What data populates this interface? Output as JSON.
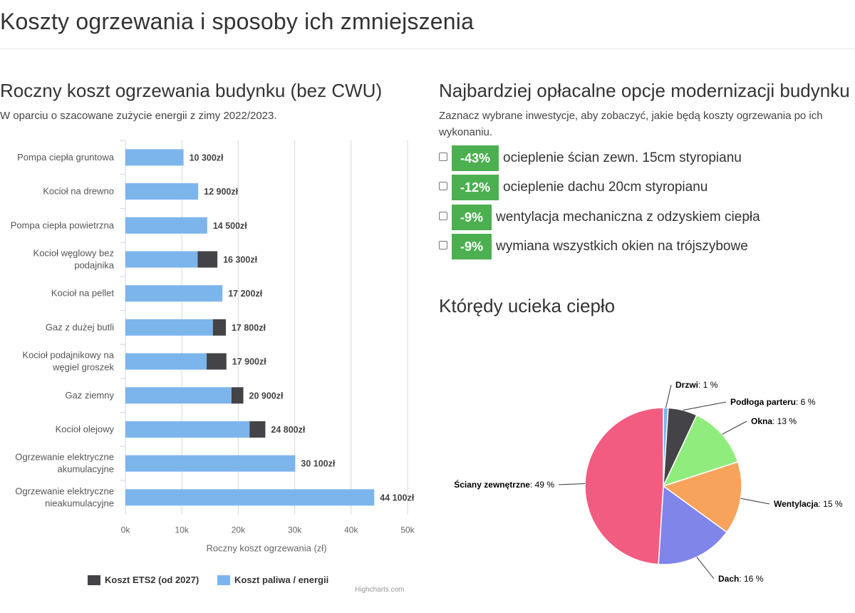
{
  "page": {
    "title": "Koszty ogrzewania i sposoby ich zmniejszenia"
  },
  "left": {
    "title": "Roczny koszt ogrzewania budynku (bez CWU)",
    "subtitle": "W oparciu o szacowane zużycie energii z zimy 2022/2023."
  },
  "right": {
    "title": "Najbardziej opłacalne opcje modernizacji budynku",
    "subtitle_line1": "Zaznacz wybrane inwestycje, aby zobaczyć, jakie będą koszty ogrzewania po ich",
    "subtitle_line2": "wykonaniu.",
    "options": [
      {
        "badge": "-43%",
        "label": "ocieplenie ścian zewn. 15cm styropianu"
      },
      {
        "badge": "-12%",
        "label": "ocieplenie dachu 20cm styropianu"
      },
      {
        "badge": "-9%",
        "label": "wentylacja mechaniczna z odzyskiem ciepła"
      },
      {
        "badge": "-9%",
        "label": "wymiana wszystkich okien na trójszybowe"
      }
    ],
    "pie_title": "Którędy ucieka ciepło"
  },
  "colors": {
    "fuel": "#7cb5ec",
    "ets": "#434348",
    "badge": "#4caf50"
  },
  "chart_data": [
    {
      "type": "bar",
      "orientation": "horizontal",
      "stacked": true,
      "categories": [
        [
          "Pompa ciepła gruntowa"
        ],
        [
          "Kocioł na drewno"
        ],
        [
          "Pompa ciepła powietrzna"
        ],
        [
          "Kocioł węglowy bez",
          "podajnika"
        ],
        [
          "Kocioł na pellet"
        ],
        [
          "Gaz z dużej butli"
        ],
        [
          "Kocioł podajnikowy na",
          "węgiel groszek"
        ],
        [
          "Gaz ziemny"
        ],
        [
          "Kocioł olejowy"
        ],
        [
          "Ogrzewanie elektryczne",
          "akumulacyjne"
        ],
        [
          "Ogrzewanie elektryczne",
          "nieakumulacyjne"
        ]
      ],
      "series": [
        {
          "name": "Koszt ETS2 (od 2027)",
          "color": "#434348",
          "values": [
            0,
            0,
            0,
            3500,
            0,
            2300,
            3500,
            2100,
            2800,
            0,
            0
          ]
        },
        {
          "name": "Koszt paliwa / energii",
          "color": "#7cb5ec",
          "values": [
            10300,
            12900,
            14500,
            12800,
            17200,
            15500,
            14400,
            18800,
            22000,
            30100,
            44100
          ]
        }
      ],
      "total_labels": [
        "10 300zł",
        "12 900zł",
        "14 500zł",
        "16 300zł",
        "17 200zł",
        "17 800zł",
        "17 900zł",
        "20 900zł",
        "24 800zł",
        "30 100zł",
        "44 100zł"
      ],
      "xlabel": "Roczny koszt ogrzewania (zł)",
      "xlim": [
        0,
        50000
      ],
      "ticks": [
        "0k",
        "10k",
        "20k",
        "30k",
        "40k",
        "50k"
      ],
      "grid": true,
      "legend": "bottom",
      "credits": "Highcharts.com"
    },
    {
      "type": "pie",
      "title": "Którędy ucieka ciepło",
      "slices": [
        {
          "name": "Drzwi",
          "value": 1,
          "label": ": 1 %",
          "color": "#7cb5ec"
        },
        {
          "name": "Podłoga parteru",
          "value": 6,
          "label": ": 6 %",
          "color": "#434348"
        },
        {
          "name": "Okna",
          "value": 13,
          "label": ": 13 %",
          "color": "#90ed7d"
        },
        {
          "name": "Wentylacja",
          "value": 15,
          "label": ": 15 %",
          "color": "#f7a35c"
        },
        {
          "name": "Dach",
          "value": 16,
          "label": ": 16 %",
          "color": "#8085e9"
        },
        {
          "name": "Ściany zewnętrzne",
          "value": 49,
          "label": ": 49 %",
          "color": "#f15c80"
        }
      ]
    }
  ]
}
